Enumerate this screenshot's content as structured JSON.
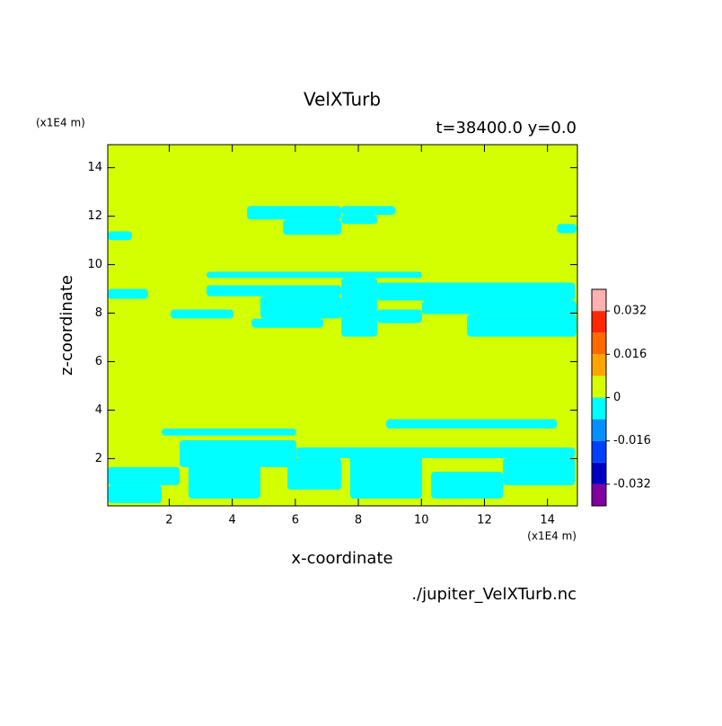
{
  "chart_data": {
    "type": "filled-contour",
    "title": "VelXTurb",
    "subtitle": "t=38400.0 y=0.0",
    "x_label": "x-coordinate",
    "y_label": "z-coordinate",
    "x_units": "(x1E4 m)",
    "y_units": "(x1E4 m)",
    "source": "./jupiter_VelXTurb.nc",
    "xlim": [
      0.05,
      14.95
    ],
    "ylim": [
      0.05,
      14.95
    ],
    "xticks": [
      2,
      4,
      6,
      8,
      10,
      12,
      14
    ],
    "yticks": [
      2,
      4,
      6,
      8,
      10,
      12,
      14
    ],
    "background_value": 0.004,
    "patches": [
      {
        "x": [
          4.47,
          7.46
        ],
        "z": [
          11.86,
          12.42
        ],
        "value": -0.004
      },
      {
        "x": [
          5.61,
          7.46
        ],
        "z": [
          11.23,
          11.86
        ],
        "value": -0.004
      },
      {
        "x": [
          7.46,
          9.17
        ],
        "z": [
          12.05,
          12.42
        ],
        "value": -0.004
      },
      {
        "x": [
          7.46,
          8.6
        ],
        "z": [
          11.68,
          12.05
        ],
        "value": -0.004
      },
      {
        "x": [
          0.05,
          0.82
        ],
        "z": [
          11.01,
          11.38
        ],
        "value": -0.004
      },
      {
        "x": [
          14.3,
          14.92
        ],
        "z": [
          11.3,
          11.68
        ],
        "value": -0.004
      },
      {
        "x": [
          3.18,
          10.02
        ],
        "z": [
          9.45,
          9.71
        ],
        "value": -0.004
      },
      {
        "x": [
          0.05,
          1.33
        ],
        "z": [
          8.59,
          9.0
        ],
        "value": -0.004
      },
      {
        "x": [
          3.18,
          7.46
        ],
        "z": [
          8.7,
          9.15
        ],
        "value": -0.004
      },
      {
        "x": [
          4.89,
          7.46
        ],
        "z": [
          7.78,
          8.7
        ],
        "value": -0.004
      },
      {
        "x": [
          7.46,
          8.6
        ],
        "z": [
          7.03,
          9.45
        ],
        "value": -0.004
      },
      {
        "x": [
          8.6,
          14.87
        ],
        "z": [
          8.52,
          9.26
        ],
        "value": -0.004
      },
      {
        "x": [
          10.02,
          14.92
        ],
        "z": [
          7.96,
          8.52
        ],
        "value": -0.004
      },
      {
        "x": [
          11.45,
          14.92
        ],
        "z": [
          7.03,
          7.96
        ],
        "value": -0.004
      },
      {
        "x": [
          2.04,
          4.04
        ],
        "z": [
          7.78,
          8.15
        ],
        "value": -0.004
      },
      {
        "x": [
          4.61,
          6.89
        ],
        "z": [
          7.4,
          7.78
        ],
        "value": -0.004
      },
      {
        "x": [
          8.6,
          10.02
        ],
        "z": [
          7.59,
          8.15
        ],
        "value": -0.004
      },
      {
        "x": [
          1.76,
          6.03
        ],
        "z": [
          2.95,
          3.24
        ],
        "value": -0.004
      },
      {
        "x": [
          8.88,
          14.3
        ],
        "z": [
          3.24,
          3.62
        ],
        "value": -0.004
      },
      {
        "x": [
          2.33,
          6.03
        ],
        "z": [
          1.65,
          2.76
        ],
        "value": -0.004
      },
      {
        "x": [
          6.03,
          14.87
        ],
        "z": [
          2.02,
          2.46
        ],
        "value": -0.004
      },
      {
        "x": [
          0.05,
          1.76
        ],
        "z": [
          0.16,
          0.9
        ],
        "value": -0.004
      },
      {
        "x": [
          2.61,
          4.89
        ],
        "z": [
          0.35,
          2.39
        ],
        "value": -0.004
      },
      {
        "x": [
          5.75,
          7.46
        ],
        "z": [
          0.72,
          2.02
        ],
        "value": -0.004
      },
      {
        "x": [
          7.74,
          10.02
        ],
        "z": [
          0.35,
          2.2
        ],
        "value": -0.004
      },
      {
        "x": [
          10.31,
          12.59
        ],
        "z": [
          0.35,
          1.46
        ],
        "value": -0.004
      },
      {
        "x": [
          12.59,
          14.87
        ],
        "z": [
          0.9,
          2.02
        ],
        "value": -0.004
      },
      {
        "x": [
          0.05,
          2.33
        ],
        "z": [
          0.9,
          1.65
        ],
        "value": -0.004
      }
    ],
    "colorbar": {
      "levels": [
        -0.04,
        -0.032,
        -0.024,
        -0.016,
        -0.008,
        0,
        0.008,
        0.016,
        0.024,
        0.032,
        0.04
      ],
      "colors": [
        "#8000a0",
        "#0000c0",
        "#0040ff",
        "#0090ff",
        "#00ffff",
        "#d4ff00",
        "#ffa500",
        "#ff6a00",
        "#ff2800",
        "#ffb0b0"
      ],
      "ticks": [
        0.032,
        0.016,
        0,
        -0.016,
        -0.032
      ]
    }
  }
}
